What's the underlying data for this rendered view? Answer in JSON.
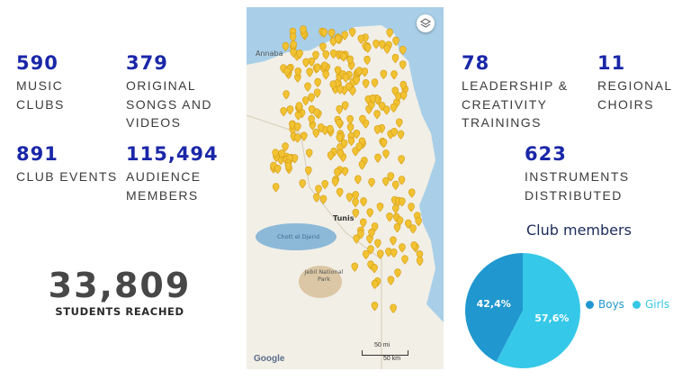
{
  "stats": {
    "music_clubs": {
      "value": "590",
      "label": "MUSIC\nCLUBS"
    },
    "original_songs": {
      "value": "379",
      "label": "ORIGINAL\nSONGS AND\nVIDEOS"
    },
    "club_events": {
      "value": "891",
      "label": "CLUB EVENTS"
    },
    "audience": {
      "value": "115,494",
      "label": "AUDIENCE\nMEMBERS"
    },
    "leadership": {
      "value": "78",
      "label": "LEADERSHIP &\nCREATIVITY\nTRAININGS"
    },
    "choirs": {
      "value": "11",
      "label": "REGIONAL\nCHOIRS"
    },
    "instruments": {
      "value": "623",
      "label": "INSTRUMENTS\nDISTRIBUTED"
    }
  },
  "students": {
    "value": "33,809",
    "label": "STUDENTS REACHED"
  },
  "map": {
    "labels": {
      "annaba": "Annaba",
      "tunis": "Tunis",
      "chott": "Chott el Djerid",
      "park": "Jebil National Park"
    },
    "attribution": "Google",
    "scale_top": "50 mi",
    "scale_bottom": "50 km",
    "layers_icon": "layers-icon",
    "pin_icon": "map-pin-icon",
    "colors": {
      "sea": "#a9cfe8",
      "land": "#f2efe6",
      "pin": "#f1c232",
      "lake": "#8db9d8",
      "desert": "#dbc7a5"
    }
  },
  "chart_data": {
    "type": "pie",
    "title": "Club members",
    "categories": [
      "Boys",
      "Girls"
    ],
    "values": [
      42.4,
      57.6
    ],
    "value_labels": [
      "42,4%",
      "57,6%"
    ],
    "colors": [
      "#2097cf",
      "#36c8e8"
    ],
    "legend_position": "right"
  }
}
